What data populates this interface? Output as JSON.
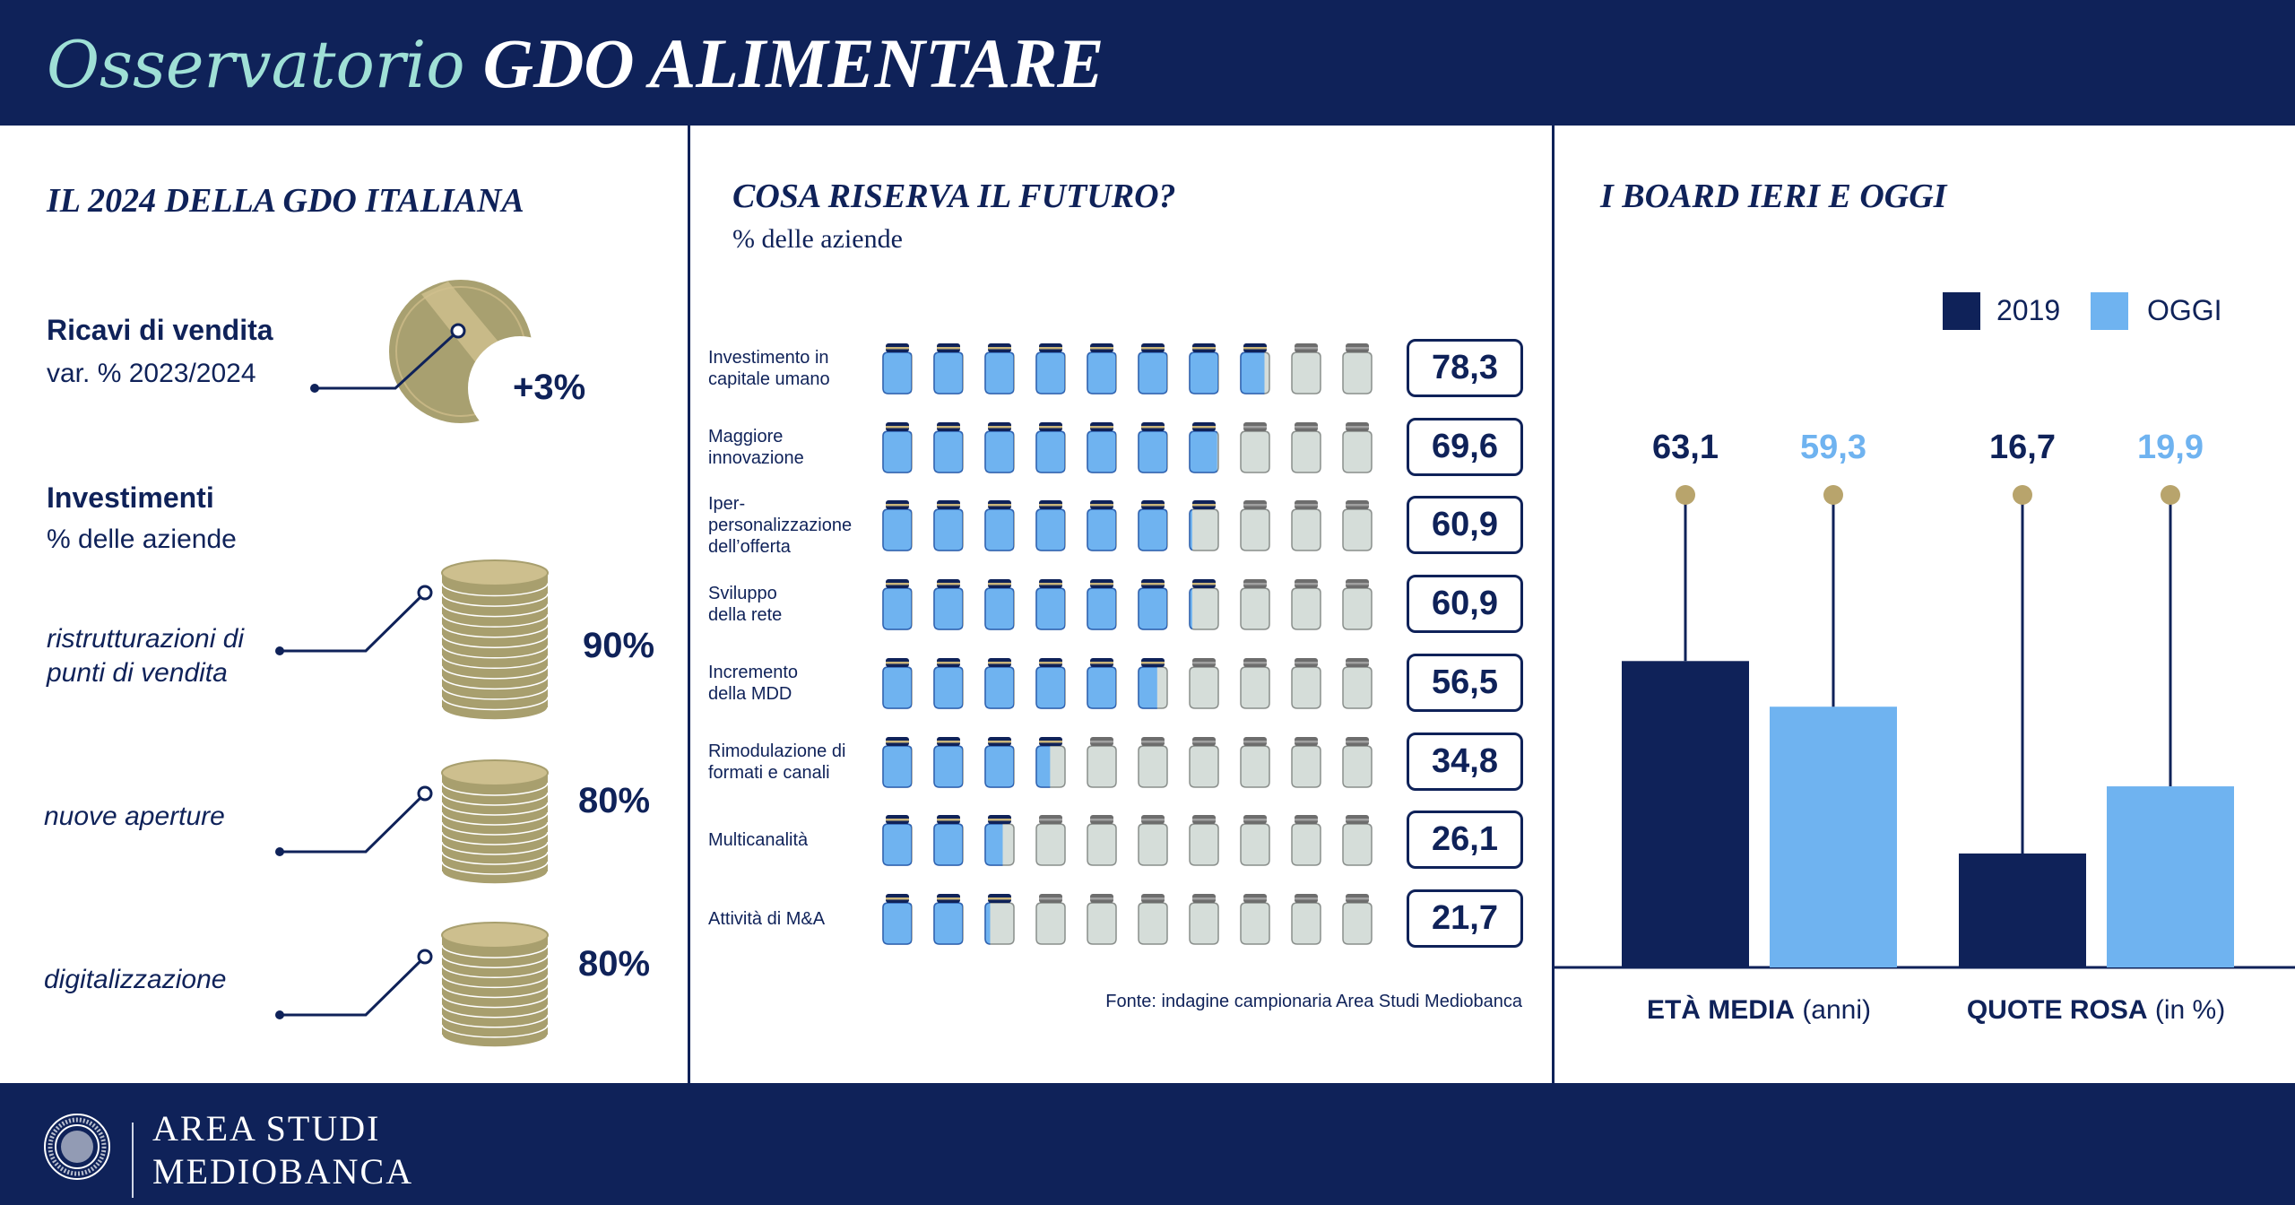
{
  "header": {
    "title_part1": "Osservatorio",
    "title_part2": "GDO ALIMENTARE"
  },
  "colors": {
    "navy": "#0f2259",
    "light_blue": "#6fb3f0",
    "gold": "#b8a46c",
    "teal": "#9fe0d6",
    "empty_jar": "#d5ddd9"
  },
  "left": {
    "title": "IL 2024 DELLA GDO ITALIANA",
    "revenue": {
      "label": "Ricavi di vendita",
      "sublabel": "var. % 2023/2024",
      "value": "+3%"
    },
    "investments": {
      "label": "Investimenti",
      "sublabel": "% delle aziende",
      "items": [
        {
          "label_line1": "ristrutturazioni di",
          "label_line2": "punti di vendita",
          "value": "90%"
        },
        {
          "label_line1": "nuove aperture",
          "label_line2": "",
          "value": "80%"
        },
        {
          "label_line1": "digitalizzazione",
          "label_line2": "",
          "value": "80%"
        }
      ]
    }
  },
  "middle": {
    "title": "COSA RISERVA IL FUTURO?",
    "subtitle": "% delle aziende",
    "source": "Fonte: indagine campionaria Area Studi Mediobanca",
    "chart_data": {
      "type": "pictogram",
      "unit_per_icon": 10,
      "icons_per_row": 10,
      "categories": [
        "Investimento in capitale umano",
        "Maggiore innovazione",
        "Iper-personalizzazione dell'offerta",
        "Sviluppo della rete",
        "Incremento della MDD",
        "Rimodulazione di formati e canali",
        "Multicanalità",
        "Attività di M&A"
      ],
      "values": [
        78.3,
        69.6,
        60.9,
        60.9,
        56.5,
        34.8,
        26.1,
        21.7
      ],
      "rows": [
        {
          "label": [
            "Investimento in",
            "capitale umano"
          ],
          "value_label": "78,3"
        },
        {
          "label": [
            "Maggiore",
            "innovazione"
          ],
          "value_label": "69,6"
        },
        {
          "label": [
            "Iper-",
            "personalizzazione",
            "dell’offerta"
          ],
          "value_label": "60,9"
        },
        {
          "label": [
            "Sviluppo",
            "della rete"
          ],
          "value_label": "60,9"
        },
        {
          "label": [
            "Incremento",
            "della MDD"
          ],
          "value_label": "56,5"
        },
        {
          "label": [
            "Rimodulazione di",
            "formati e canali"
          ],
          "value_label": "34,8"
        },
        {
          "label": [
            "Multicanalità"
          ],
          "value_label": "26,1"
        },
        {
          "label": [
            "Attività di M&A"
          ],
          "value_label": "21,7"
        }
      ]
    }
  },
  "right": {
    "title": "I BOARD IERI E OGGI",
    "chart_data": {
      "type": "bar",
      "legend": "top-right",
      "series": [
        {
          "name": "2019",
          "color": "#0f2259"
        },
        {
          "name": "OGGI",
          "color": "#6fb3f0"
        }
      ],
      "groups": [
        {
          "label_bold": "ETÀ MEDIA",
          "label_unit": "(anni)",
          "values": [
            63.1,
            59.3
          ],
          "value_labels": [
            "63,1",
            "59,3"
          ]
        },
        {
          "label_bold": "QUOTE ROSA",
          "label_unit": "(in %)",
          "values": [
            16.7,
            19.9
          ],
          "value_labels": [
            "16,7",
            "19,9"
          ]
        }
      ]
    }
  },
  "footer": {
    "brand_line1": "AREA STUDI",
    "brand_line2": "MEDIOBANCA",
    "seal_text": "MEDIOBANCA · BANCA DI CREDITO FINANZIARIO"
  }
}
